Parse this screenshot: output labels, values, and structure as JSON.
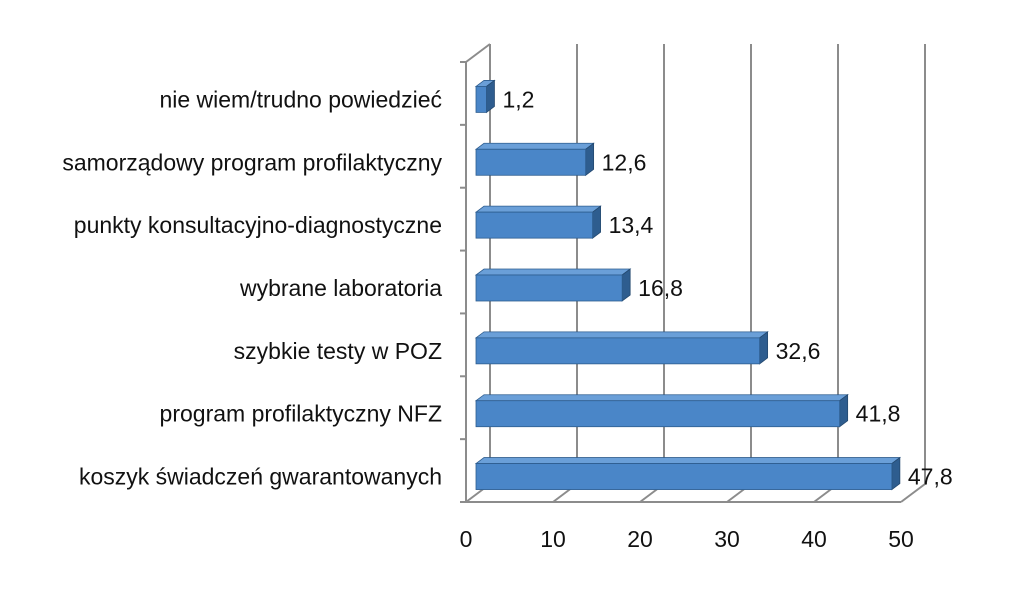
{
  "chart_data": {
    "type": "bar",
    "orientation": "horizontal",
    "style": "3d",
    "title": "",
    "xlabel": "",
    "ylabel": "",
    "categories": [
      "nie wiem/trudno powiedzieć",
      "samorządowy program profilaktyczny",
      "punkty konsultacyjno-diagnostyczne",
      "wybrane laboratoria",
      "szybkie testy w POZ",
      "program profilaktyczny NFZ",
      "koszyk świadczeń gwarantowanych"
    ],
    "values": [
      1.2,
      12.6,
      13.4,
      16.8,
      32.6,
      41.8,
      47.8
    ],
    "value_labels": [
      "1,2",
      "12,6",
      "13,4",
      "16,8",
      "32,6",
      "41,8",
      "47,8"
    ],
    "xlim": [
      0,
      50
    ],
    "x_ticks": [
      0,
      10,
      20,
      30,
      40,
      50
    ],
    "x_tick_labels": [
      "0",
      "10",
      "20",
      "30",
      "40",
      "50"
    ],
    "grid": true,
    "legend": "none",
    "bar_color": "#4a86c8",
    "bar_top_color": "#6a9fd8",
    "bar_side_color": "#2e5d8f"
  }
}
